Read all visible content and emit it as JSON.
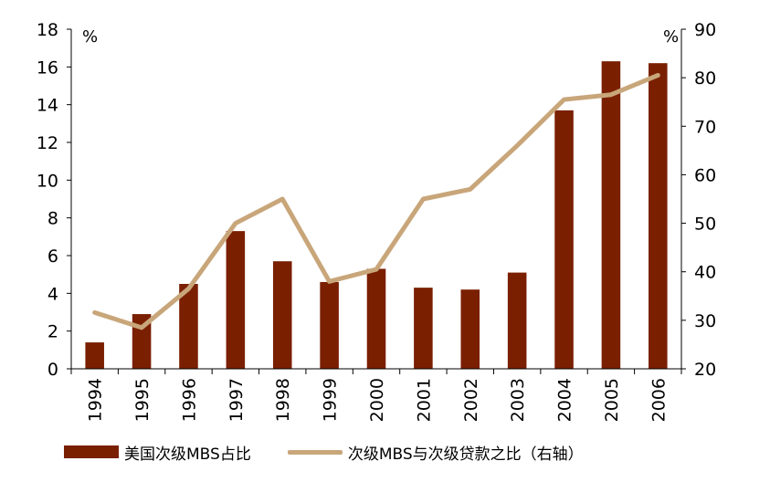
{
  "chart_data": {
    "type": "bar",
    "categories": [
      "1994",
      "1995",
      "1996",
      "1997",
      "1998",
      "1999",
      "2000",
      "2001",
      "2002",
      "2003",
      "2004",
      "2005",
      "2006"
    ],
    "series": [
      {
        "name": "美国次级MBS占比",
        "type": "bar",
        "axis": "left",
        "values": [
          1.4,
          2.9,
          4.5,
          7.3,
          5.7,
          4.6,
          5.3,
          4.3,
          4.2,
          5.1,
          13.7,
          16.3,
          16.2
        ]
      },
      {
        "name": "次级MBS与次级贷款之比（右轴）",
        "type": "line",
        "axis": "right",
        "values": [
          31.6,
          28.5,
          36.5,
          50.0,
          55.0,
          38.0,
          40.5,
          55.0,
          57.0,
          66.0,
          75.5,
          76.5,
          80.5
        ]
      }
    ],
    "y_left": {
      "unit": "%",
      "ylim": [
        0,
        18
      ],
      "ticks": [
        "0",
        "2",
        "4",
        "6",
        "8",
        "10",
        "12",
        "14",
        "16",
        "18"
      ]
    },
    "y_right": {
      "unit": "%",
      "ylim": [
        20,
        90
      ],
      "ticks": [
        "20",
        "30",
        "40",
        "50",
        "60",
        "70",
        "80",
        "90"
      ]
    },
    "colors": {
      "bar": "#7a1f00",
      "line": "#c8a67a",
      "axis": "#000000"
    },
    "legend_position": "bottom",
    "grid": false
  }
}
